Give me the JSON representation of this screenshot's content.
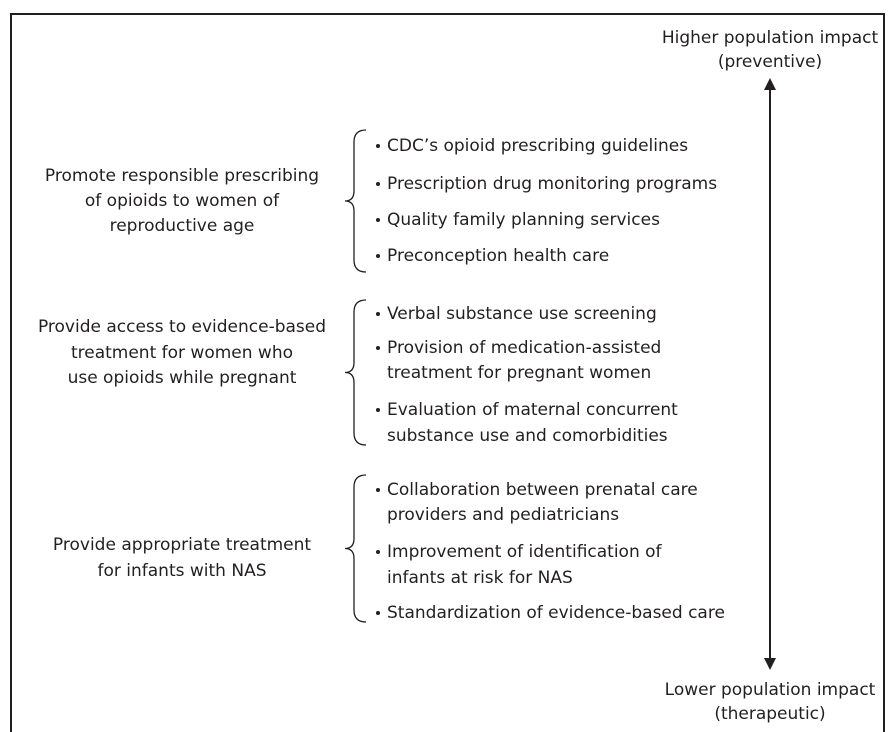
{
  "axis": {
    "top_lines": [
      "Higher population impact",
      "(preventive)"
    ],
    "bottom_lines": [
      "Lower population impact",
      "(therapeutic)"
    ]
  },
  "groups": [
    {
      "label_lines": [
        "Promote responsible prescribing",
        "of opioids to women of",
        "reproductive age"
      ],
      "items": [
        [
          "CDC’s opioid prescribing guidelines"
        ],
        [
          "Prescription drug monitoring programs"
        ],
        [
          "Quality family planning services"
        ],
        [
          "Preconception health care"
        ]
      ]
    },
    {
      "label_lines": [
        "Provide access to evidence-based",
        "treatment for women who",
        "use opioids while pregnant"
      ],
      "items": [
        [
          "Verbal substance use screening"
        ],
        [
          "Provision of medication-assisted",
          "treatment for pregnant women"
        ],
        [
          "Evaluation of maternal concurrent",
          "substance use and comorbidities"
        ]
      ]
    },
    {
      "label_lines": [
        "Provide appropriate treatment",
        "for infants with NAS"
      ],
      "items": [
        [
          "Collaboration between prenatal care",
          "providers and pediatricians"
        ],
        [
          "Improvement of identification of",
          "infants at risk for NAS"
        ],
        [
          "Standardization of evidence-based care"
        ]
      ]
    }
  ]
}
